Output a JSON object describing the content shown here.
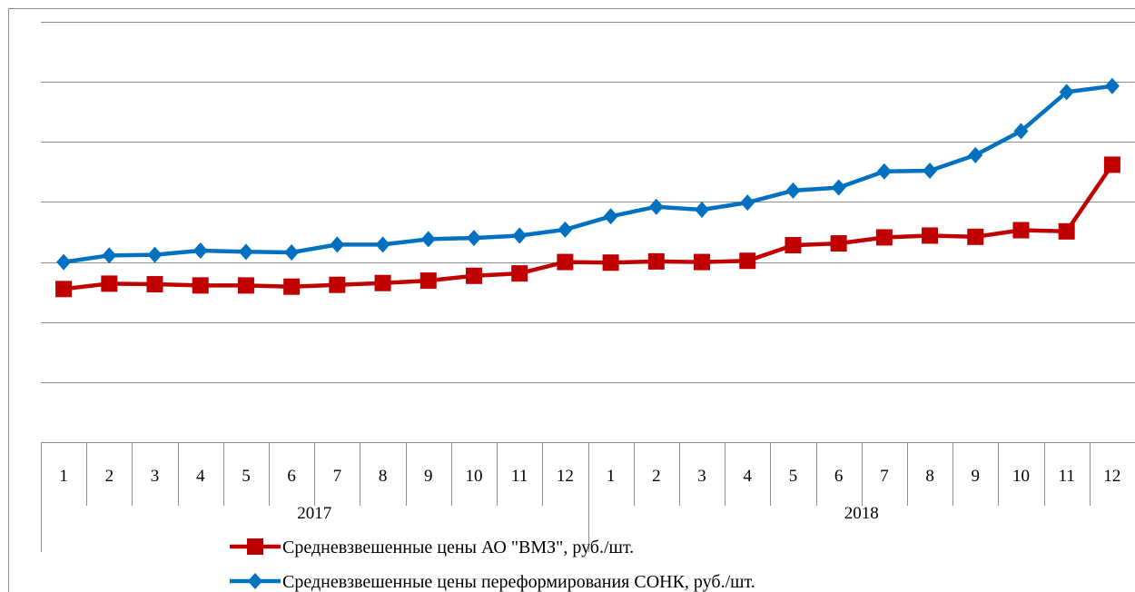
{
  "chart_data": {
    "type": "line",
    "title": "",
    "xlabel": "",
    "ylabel": "",
    "categories": [
      "1",
      "2",
      "3",
      "4",
      "5",
      "6",
      "7",
      "8",
      "9",
      "10",
      "11",
      "12",
      "1",
      "2",
      "3",
      "4",
      "5",
      "6",
      "7",
      "8",
      "9",
      "10",
      "11",
      "12"
    ],
    "years": [
      {
        "label": "2017",
        "span": 12
      },
      {
        "label": "2018",
        "span": 12
      }
    ],
    "ylim": [
      0,
      7
    ],
    "gridlines": 7,
    "grid": true,
    "legend_position": "bottom",
    "series": [
      {
        "name": "Средневзвешенные цены АО \"ВМЗ\", руб./шт.",
        "color": "#C00000",
        "marker": "square",
        "values": [
          2.55,
          2.64,
          2.63,
          2.61,
          2.61,
          2.59,
          2.62,
          2.65,
          2.69,
          2.77,
          2.81,
          3.0,
          2.99,
          3.01,
          3.0,
          3.02,
          3.28,
          3.31,
          3.41,
          3.44,
          3.42,
          3.53,
          3.51,
          4.62
        ]
      },
      {
        "name": "Средневзвешенные цены переформирования СОНК, руб./шт.",
        "color": "#0070C0",
        "marker": "diamond",
        "values": [
          3.0,
          3.11,
          3.12,
          3.19,
          3.17,
          3.16,
          3.29,
          3.29,
          3.38,
          3.4,
          3.44,
          3.54,
          3.76,
          3.92,
          3.87,
          3.99,
          4.19,
          4.24,
          4.51,
          4.52,
          4.78,
          5.18,
          5.83,
          5.93
        ]
      }
    ]
  }
}
